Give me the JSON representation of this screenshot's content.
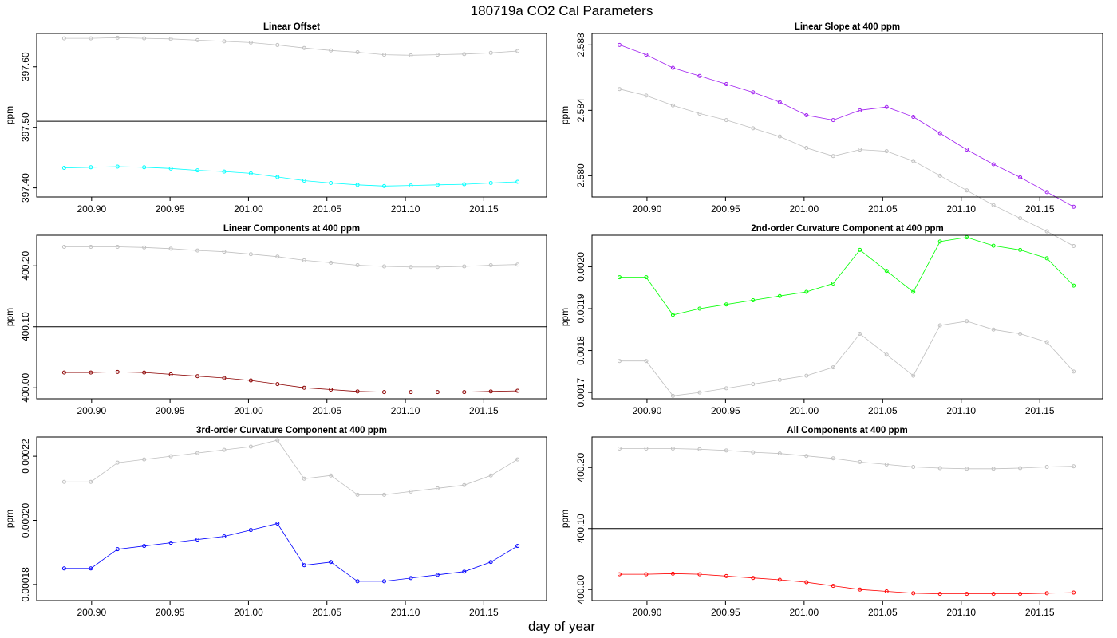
{
  "figure": {
    "title": "180719a   CO2 Cal Parameters",
    "xlabel": "day of year"
  },
  "chart_data": [
    {
      "type": "line",
      "title": "Linear Offset",
      "ylabel": "ppm",
      "xlim": [
        200.865,
        201.19
      ],
      "ylim": [
        397.385,
        397.655
      ],
      "xticks": [
        200.9,
        200.95,
        201.0,
        201.05,
        201.1,
        201.15
      ],
      "xtick_labels": [
        "200.90",
        "200.95",
        "201.00",
        "201.05",
        "201.10",
        "201.15"
      ],
      "yticks": [
        397.4,
        397.5,
        397.6
      ],
      "ytick_labels": [
        "397.40",
        "397.50",
        "397.60"
      ],
      "hline": 397.51,
      "grey": [
        397.647,
        397.647,
        397.648,
        397.647,
        397.646,
        397.644,
        397.642,
        397.64,
        397.636,
        397.631,
        397.627,
        397.624,
        397.62,
        397.619,
        397.62,
        397.621,
        397.623,
        397.626
      ],
      "series": [
        {
          "color": "#00ffff",
          "values": [
            397.433,
            397.434,
            397.435,
            397.434,
            397.432,
            397.429,
            397.427,
            397.424,
            397.418,
            397.412,
            397.408,
            397.405,
            397.403,
            397.404,
            397.405,
            397.406,
            397.408,
            397.41
          ]
        }
      ]
    },
    {
      "type": "line",
      "title": "Linear Slope at 400 ppm",
      "ylabel": "ppm",
      "xlim": [
        200.865,
        201.19
      ],
      "ylim": [
        2.5787,
        2.5887
      ],
      "xticks": [
        200.9,
        200.95,
        201.0,
        201.05,
        201.1,
        201.15
      ],
      "xtick_labels": [
        "200.90",
        "200.95",
        "201.00",
        "201.05",
        "201.10",
        "201.15"
      ],
      "yticks": [
        2.58,
        2.584,
        2.588
      ],
      "ytick_labels": [
        "2.580",
        "2.584",
        "2.588"
      ],
      "grey": [
        2.5853,
        2.5849,
        2.5843,
        2.5838,
        2.5834,
        2.5829,
        2.5824,
        2.5817,
        2.5812,
        2.5816,
        2.5815,
        2.5809,
        2.58,
        2.5791,
        2.5782,
        2.5774,
        2.5766,
        2.5757
      ],
      "series": [
        {
          "color": "#a020f0",
          "values": [
            2.588,
            2.5874,
            2.5866,
            2.5861,
            2.5856,
            2.5851,
            2.5845,
            2.5837,
            2.5834,
            2.584,
            2.5842,
            2.5836,
            2.5826,
            2.5816,
            2.5807,
            2.5799,
            2.579,
            2.5781
          ]
        }
      ]
    },
    {
      "type": "line",
      "title": "Linear Components at 400 ppm",
      "ylabel": "ppm",
      "xlim": [
        200.865,
        201.19
      ],
      "ylim": [
        399.982,
        400.25
      ],
      "xticks": [
        200.9,
        200.95,
        201.0,
        201.05,
        201.1,
        201.15
      ],
      "xtick_labels": [
        "200.90",
        "200.95",
        "201.00",
        "201.05",
        "201.10",
        "201.15"
      ],
      "yticks": [
        400.0,
        400.1,
        400.2
      ],
      "ytick_labels": [
        "400.00",
        "400.10",
        "400.20"
      ],
      "hline": 400.1,
      "grey": [
        400.231,
        400.231,
        400.231,
        400.23,
        400.228,
        400.225,
        400.223,
        400.219,
        400.215,
        400.209,
        400.205,
        400.201,
        400.199,
        400.198,
        400.198,
        400.199,
        400.201,
        400.202
      ],
      "series": [
        {
          "color": "#8b0000",
          "values": [
            400.025,
            400.025,
            400.026,
            400.025,
            400.022,
            400.019,
            400.016,
            400.012,
            400.006,
            400,
            399.997,
            399.994,
            399.993,
            399.993,
            399.993,
            399.993,
            399.994,
            399.995
          ]
        }
      ]
    },
    {
      "type": "line",
      "title": "2nd-order Curvature Component at 400 ppm",
      "ylabel": "ppm",
      "xlim": [
        200.865,
        201.19
      ],
      "ylim": [
        0.001685,
        0.002075
      ],
      "xticks": [
        200.9,
        200.95,
        201.0,
        201.05,
        201.1,
        201.15
      ],
      "xtick_labels": [
        "200.90",
        "200.95",
        "201.00",
        "201.05",
        "201.10",
        "201.15"
      ],
      "yticks": [
        0.0017,
        0.0018,
        0.0019,
        0.002
      ],
      "ytick_labels": [
        "0.0017",
        "0.0018",
        "0.0019",
        "0.0020"
      ],
      "grey": [
        0.001775,
        0.001775,
        0.001692,
        0.0017,
        0.00171,
        0.00172,
        0.00173,
        0.00174,
        0.00176,
        0.00184,
        0.00179,
        0.00174,
        0.00186,
        0.00187,
        0.00185,
        0.00184,
        0.00182,
        0.00175
      ],
      "series": [
        {
          "color": "#00ff00",
          "values": [
            0.001975,
            0.001975,
            0.001885,
            0.0019,
            0.00191,
            0.00192,
            0.00193,
            0.00194,
            0.00196,
            0.00204,
            0.00199,
            0.00194,
            0.00206,
            0.00207,
            0.00205,
            0.00204,
            0.00202,
            0.001955
          ]
        }
      ]
    },
    {
      "type": "line",
      "title": "3rd-order Curvature Component at 400 ppm",
      "ylabel": "ppm",
      "xlim": [
        200.865,
        201.19
      ],
      "ylim": [
        0.000175,
        0.000226
      ],
      "xticks": [
        200.9,
        200.95,
        201.0,
        201.05,
        201.1,
        201.15
      ],
      "xtick_labels": [
        "200.90",
        "200.95",
        "201.00",
        "201.05",
        "201.10",
        "201.15"
      ],
      "yticks": [
        0.00018,
        0.0002,
        0.00022
      ],
      "ytick_labels": [
        "0.00018",
        "0.00020",
        "0.00022"
      ],
      "grey": [
        0.000212,
        0.000212,
        0.000218,
        0.000219,
        0.00022,
        0.000221,
        0.000222,
        0.000223,
        0.000225,
        0.000213,
        0.000214,
        0.000208,
        0.000208,
        0.000209,
        0.00021,
        0.000211,
        0.000214,
        0.000219
      ],
      "series": [
        {
          "color": "#0000ff",
          "values": [
            0.000185,
            0.000185,
            0.000191,
            0.000192,
            0.000193,
            0.000194,
            0.000195,
            0.000197,
            0.000199,
            0.000186,
            0.000187,
            0.000181,
            0.000181,
            0.000182,
            0.000183,
            0.000184,
            0.000187,
            0.000192
          ]
        }
      ]
    },
    {
      "type": "line",
      "title": "All Components at 400 ppm",
      "ylabel": "ppm",
      "xlim": [
        200.865,
        201.19
      ],
      "ylim": [
        399.982,
        400.25
      ],
      "xticks": [
        200.9,
        200.95,
        201.0,
        201.05,
        201.1,
        201.15
      ],
      "xtick_labels": [
        "200.90",
        "200.95",
        "201.00",
        "201.05",
        "201.10",
        "201.15"
      ],
      "yticks": [
        400.0,
        400.1,
        400.2
      ],
      "ytick_labels": [
        "400.00",
        "400.10",
        "400.20"
      ],
      "hline": 400.1,
      "grey": [
        400.231,
        400.231,
        400.231,
        400.23,
        400.228,
        400.225,
        400.223,
        400.219,
        400.215,
        400.209,
        400.205,
        400.201,
        400.199,
        400.198,
        400.198,
        400.199,
        400.201,
        400.202
      ],
      "series": [
        {
          "color": "#ff0000",
          "values": [
            400.025,
            400.025,
            400.026,
            400.025,
            400.022,
            400.019,
            400.016,
            400.012,
            400.006,
            400,
            399.997,
            399.994,
            399.993,
            399.993,
            399.993,
            399.993,
            399.994,
            399.995
          ]
        }
      ]
    }
  ]
}
